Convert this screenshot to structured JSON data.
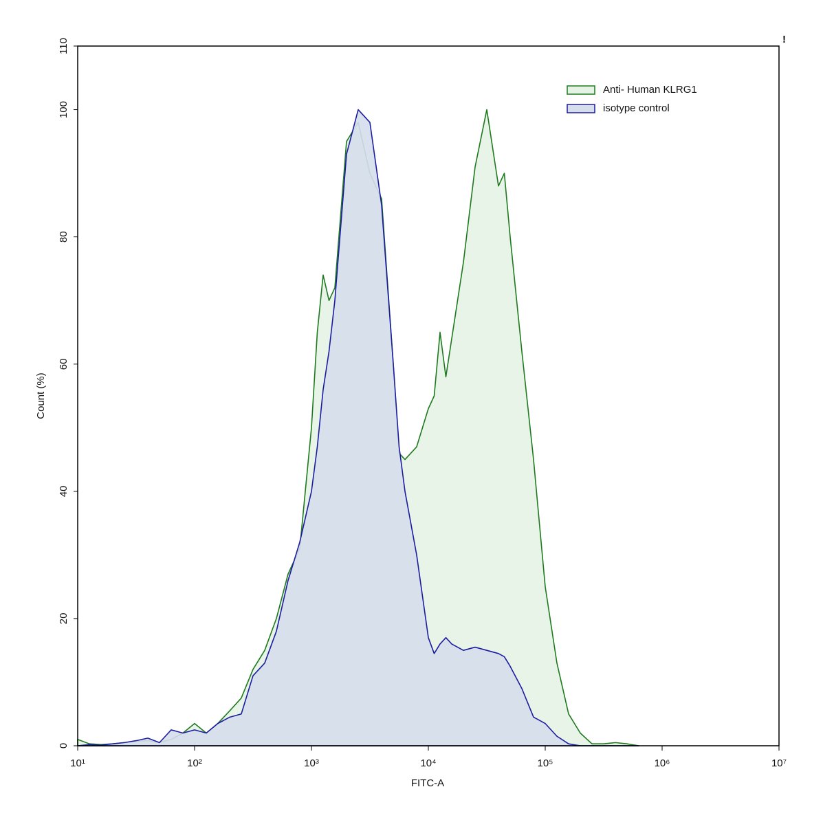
{
  "chart_data": {
    "type": "area",
    "xlabel": "FITC-A",
    "ylabel": "Count  (%)",
    "annotation": "!",
    "log_x": true,
    "legend": "upper right",
    "xlim": [
      10,
      10000000
    ],
    "ylim": [
      0,
      110
    ],
    "xticks": [
      {
        "value": 10,
        "label": "10¹"
      },
      {
        "value": 100,
        "label": "10²"
      },
      {
        "value": 1000,
        "label": "10³"
      },
      {
        "value": 10000,
        "label": "10⁴"
      },
      {
        "value": 100000,
        "label": "10⁵"
      },
      {
        "value": 1000000,
        "label": "10⁶"
      },
      {
        "value": 10000000,
        "label": "10⁷"
      }
    ],
    "yticks": [
      0,
      20,
      40,
      60,
      80,
      100,
      110
    ],
    "x": [
      10,
      12.6,
      15.8,
      20,
      25.1,
      31.6,
      39.8,
      50.1,
      63.1,
      79.4,
      100,
      126,
      158,
      200,
      251,
      316,
      398,
      501,
      631,
      794,
      1000,
      1122,
      1259,
      1413,
      1585,
      1995,
      2512,
      3162,
      3981,
      5012,
      5623,
      6310,
      7943,
      10000,
      11220,
      12589,
      14125,
      15849,
      19953,
      25119,
      31623,
      39811,
      44668,
      50119,
      63096,
      79433,
      100000,
      125893,
      158489,
      199526,
      251189,
      316228,
      398107,
      501187,
      630957
    ],
    "series": [
      {
        "name": "Anti- Human KLRG1",
        "color": "#1f7a1f",
        "fill": "#e4f3e4",
        "values": [
          1,
          0.3,
          0.2,
          0.3,
          0.5,
          0.7,
          0.8,
          0.5,
          1,
          2,
          3.5,
          2,
          3.5,
          5.5,
          7.5,
          12,
          15,
          20,
          27,
          31,
          50,
          65,
          74,
          70,
          72,
          95,
          98,
          90,
          86,
          60,
          46,
          45,
          47,
          53,
          55,
          65,
          58,
          64,
          76,
          91,
          100,
          88,
          90,
          80,
          62,
          45,
          25,
          13,
          5,
          2,
          0.3,
          0.3,
          0.5,
          0.3,
          0
        ]
      },
      {
        "name": "isotype control",
        "color": "#1c1ca0",
        "fill": "#d6deec",
        "values": [
          0,
          0.2,
          0.1,
          0.3,
          0.5,
          0.8,
          1.2,
          0.5,
          2.5,
          2,
          2.5,
          2,
          3.5,
          4.5,
          5,
          11,
          13,
          18,
          26,
          32,
          40,
          47,
          56,
          62,
          70,
          93,
          100,
          98,
          85,
          60,
          47,
          40,
          30,
          17,
          14.5,
          16,
          17,
          16,
          15,
          15.5,
          15,
          14.5,
          14,
          12.5,
          9,
          4.5,
          3.5,
          1.5,
          0.3,
          0,
          0,
          0,
          0,
          0,
          0
        ]
      }
    ]
  }
}
